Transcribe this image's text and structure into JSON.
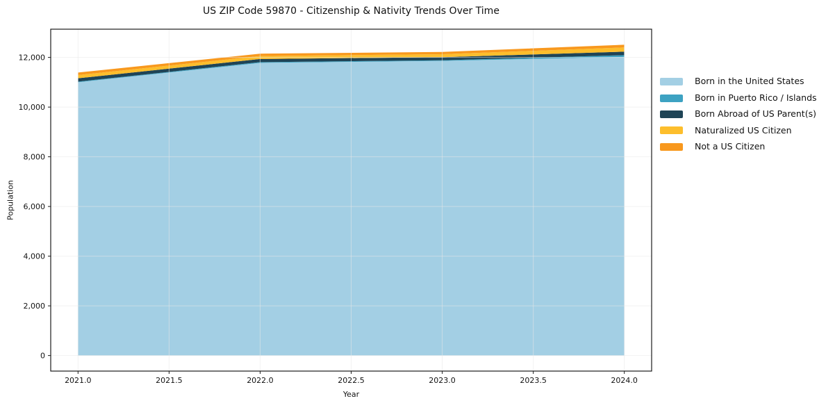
{
  "chart_data": {
    "type": "area",
    "stacked": true,
    "title": "US ZIP Code 59870 - Citizenship & Nativity Trends Over Time",
    "xlabel": "Year",
    "ylabel": "Population",
    "x": [
      2021,
      2022,
      2023,
      2024
    ],
    "series": [
      {
        "name": "Born in the United States",
        "color": "#A3CFE4",
        "values": [
          11000,
          11780,
          11860,
          12020
        ]
      },
      {
        "name": "Born in Puerto Rico / Islands",
        "color": "#3DA2C2",
        "values": [
          25,
          30,
          25,
          70
        ]
      },
      {
        "name": "Born Abroad of US Parent(s)",
        "color": "#1F4456",
        "values": [
          135,
          125,
          125,
          140
        ]
      },
      {
        "name": "Naturalized US Citizen",
        "color": "#FDBE2C",
        "values": [
          130,
          120,
          120,
          170
        ]
      },
      {
        "name": "Not a US Citizen",
        "color": "#F8981D",
        "values": [
          100,
          95,
          90,
          110
        ]
      }
    ],
    "totals_by_year": [
      11390,
      12150,
      12220,
      12510
    ],
    "xticks": {
      "values": [
        2021,
        2021.5,
        2022,
        2022.5,
        2023,
        2023.5,
        2024
      ],
      "labels": [
        "2021.0",
        "2021.5",
        "2022.0",
        "2022.5",
        "2023.0",
        "2023.5",
        "2024.0"
      ]
    },
    "yticks": {
      "values": [
        0,
        2000,
        4000,
        6000,
        8000,
        10000,
        12000
      ],
      "labels": [
        "0",
        "2,000",
        "4,000",
        "6,000",
        "8,000",
        "10,000",
        "12,000"
      ]
    },
    "xlim": [
      2020.85,
      2024.15
    ],
    "ylim": [
      -626,
      13136
    ],
    "grid": true,
    "legend_position": "right-outside",
    "colors": {
      "grid": "#e8e8e8",
      "spine": "#1a1a1a",
      "tick": "#1a1a1a",
      "background": "#ffffff"
    }
  }
}
